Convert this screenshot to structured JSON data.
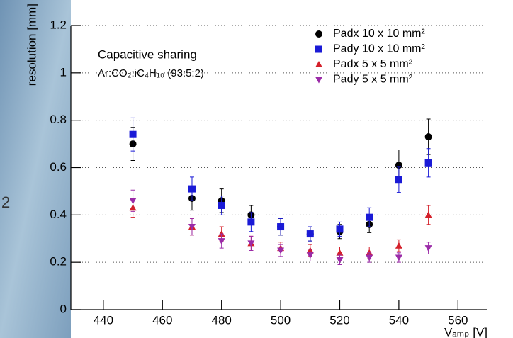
{
  "background_text": "2",
  "chart_data": {
    "type": "scatter",
    "y_label": "resolution [mm]",
    "x_label": "Vₐₘₚ [V]",
    "annotations": [
      "Capacitive sharing",
      "Ar:CO₂:iC₄H₁₀ (93:5:2)"
    ],
    "x": [
      450,
      470,
      480,
      490,
      500,
      510,
      520,
      530,
      540,
      550
    ],
    "series": [
      {
        "name": "Padx 10 x 10 mm²",
        "color": "#000000",
        "marker": "circle",
        "values": [
          0.7,
          0.47,
          0.46,
          0.4,
          0.35,
          0.32,
          0.33,
          0.36,
          0.61,
          0.73
        ],
        "errors": [
          0.07,
          0.05,
          0.05,
          0.04,
          0.035,
          0.03,
          0.03,
          0.035,
          0.065,
          0.075
        ]
      },
      {
        "name": "Pady 10 x 10 mm²",
        "color": "#1a1ad6",
        "marker": "square",
        "values": [
          0.74,
          0.51,
          0.44,
          0.37,
          0.35,
          0.32,
          0.34,
          0.39,
          0.55,
          0.62
        ],
        "errors": [
          0.07,
          0.05,
          0.04,
          0.04,
          0.035,
          0.03,
          0.03,
          0.04,
          0.055,
          0.06
        ]
      },
      {
        "name": "Padx 5 x 5 mm²",
        "color": "#d4202a",
        "marker": "triangle-up",
        "values": [
          0.43,
          0.35,
          0.32,
          0.28,
          0.26,
          0.25,
          0.24,
          0.24,
          0.27,
          0.4
        ],
        "errors": [
          0.04,
          0.035,
          0.03,
          0.03,
          0.025,
          0.025,
          0.025,
          0.025,
          0.025,
          0.04
        ]
      },
      {
        "name": "Pady 5 x 5 mm²",
        "color": "#9b2ba8",
        "marker": "triangle-down",
        "values": [
          0.46,
          0.35,
          0.29,
          0.28,
          0.25,
          0.23,
          0.21,
          0.22,
          0.22,
          0.26
        ],
        "errors": [
          0.045,
          0.035,
          0.03,
          0.03,
          0.025,
          0.025,
          0.02,
          0.02,
          0.02,
          0.025
        ]
      }
    ],
    "xlim": [
      429,
      570
    ],
    "xticks": [
      440,
      460,
      480,
      500,
      520,
      540,
      560
    ],
    "ylim": [
      0,
      1.2
    ],
    "yticks": [
      0,
      0.2,
      0.4,
      0.6,
      0.8,
      1,
      1.2
    ],
    "grid": "y",
    "legend": "top-right"
  }
}
